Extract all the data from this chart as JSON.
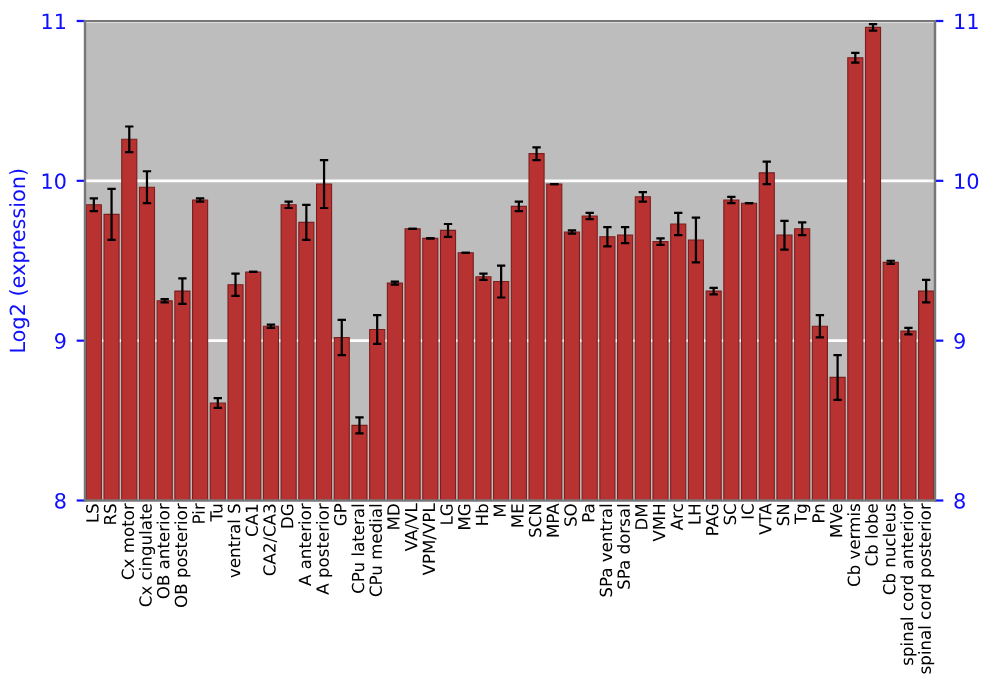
{
  "chart_data": {
    "type": "bar",
    "ylabel": "Log2 (expression)",
    "categories": [
      "LS",
      "RS",
      "Cx motor",
      "Cx cingulate",
      "OB anterior",
      "OB posterior",
      "Pir",
      "Tu",
      "ventral S",
      "CA1",
      "CA2/CA3",
      "DG",
      "A anterior",
      "A posterior",
      "GP",
      "CPu lateral",
      "CPu medial",
      "MD",
      "VA/VL",
      "VPM/VPL",
      "LG",
      "MG",
      "Hb",
      "M",
      "ME",
      "SCN",
      "MPA",
      "SO",
      "Pa",
      "SPa ventral",
      "SPa dorsal",
      "DM",
      "VMH",
      "Arc",
      "LH",
      "PAG",
      "SC",
      "IC",
      "VTA",
      "SN",
      "Tg",
      "Pn",
      "MVe",
      "Cb vermis",
      "Cb lobe",
      "Cb nucleus",
      "spinal cord anterior",
      "spinal cord posterior"
    ],
    "values": [
      9.85,
      9.79,
      10.26,
      9.96,
      9.25,
      9.31,
      9.88,
      8.61,
      9.35,
      9.43,
      9.09,
      9.85,
      9.74,
      9.98,
      9.02,
      8.47,
      9.07,
      9.36,
      9.7,
      9.64,
      9.69,
      9.55,
      9.4,
      9.37,
      9.84,
      10.17,
      9.98,
      9.68,
      9.78,
      9.65,
      9.66,
      9.9,
      9.62,
      9.73,
      9.63,
      9.31,
      9.88,
      9.86,
      10.05,
      9.66,
      9.7,
      9.09,
      8.77,
      10.77,
      10.96,
      9.49,
      9.06,
      9.31
    ],
    "errors": [
      0.04,
      0.16,
      0.08,
      0.1,
      0.01,
      0.08,
      0.01,
      0.03,
      0.07,
      0,
      0.01,
      0.02,
      0.11,
      0.15,
      0.11,
      0.05,
      0.09,
      0.01,
      0,
      0,
      0.04,
      0,
      0.02,
      0.1,
      0.03,
      0.04,
      0,
      0.01,
      0.02,
      0.06,
      0.05,
      0.03,
      0.02,
      0.07,
      0.14,
      0.02,
      0.02,
      0,
      0.07,
      0.09,
      0.04,
      0.07,
      0.14,
      0.03,
      0.02,
      0.01,
      0.02,
      0.07
    ],
    "color": "#b83232",
    "ylim": [
      8,
      11
    ],
    "yticks": [
      8,
      9,
      10,
      11
    ],
    "y2lim": [
      8,
      11
    ],
    "y2ticks": [
      8,
      9,
      10,
      11
    ],
    "grid": "y"
  }
}
